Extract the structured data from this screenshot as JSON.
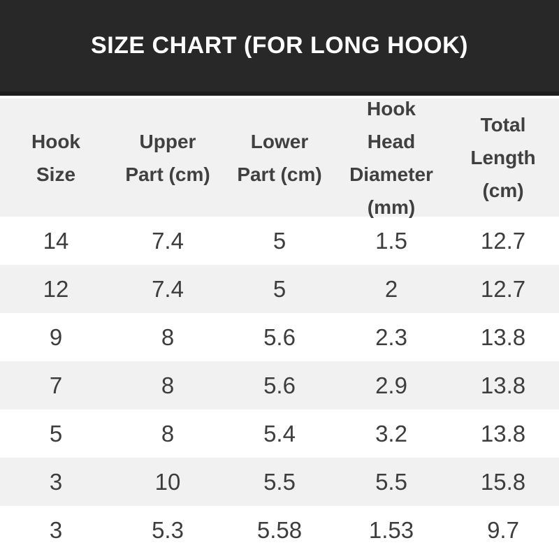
{
  "title_bar": {
    "title": "SIZE CHART (FOR LONG HOOK)"
  },
  "chart_data": {
    "type": "table",
    "title": "SIZE CHART (FOR LONG HOOK)",
    "columns": [
      "Hook Size",
      "Upper Part (cm)",
      "Lower Part (cm)",
      "Hook Head Diameter (mm)",
      "Total Length (cm)"
    ],
    "rows": [
      [
        "14",
        "7.4",
        "5",
        "1.5",
        "12.7"
      ],
      [
        "12",
        "7.4",
        "5",
        "2",
        "12.7"
      ],
      [
        "9",
        "8",
        "5.6",
        "2.3",
        "13.8"
      ],
      [
        "7",
        "8",
        "5.6",
        "2.9",
        "13.8"
      ],
      [
        "5",
        "8",
        "5.4",
        "3.2",
        "13.8"
      ],
      [
        "3",
        "10",
        "5.5",
        "5.5",
        "15.8"
      ],
      [
        "3",
        "5.3",
        "5.58",
        "1.53",
        "9.7"
      ]
    ],
    "layout_hints": {
      "row_striping": "rows alternate white and light gray starting with white",
      "header_position": "top"
    },
    "colors": {
      "title_bar_bg": "#282828",
      "title_text": "#ffffff",
      "header_row_bg": "#f1f1f1",
      "stripe_row_bg": "#f1f1f1",
      "plain_row_bg": "#ffffff",
      "header_text": "#404040",
      "cell_text": "#3d3d3d"
    }
  }
}
